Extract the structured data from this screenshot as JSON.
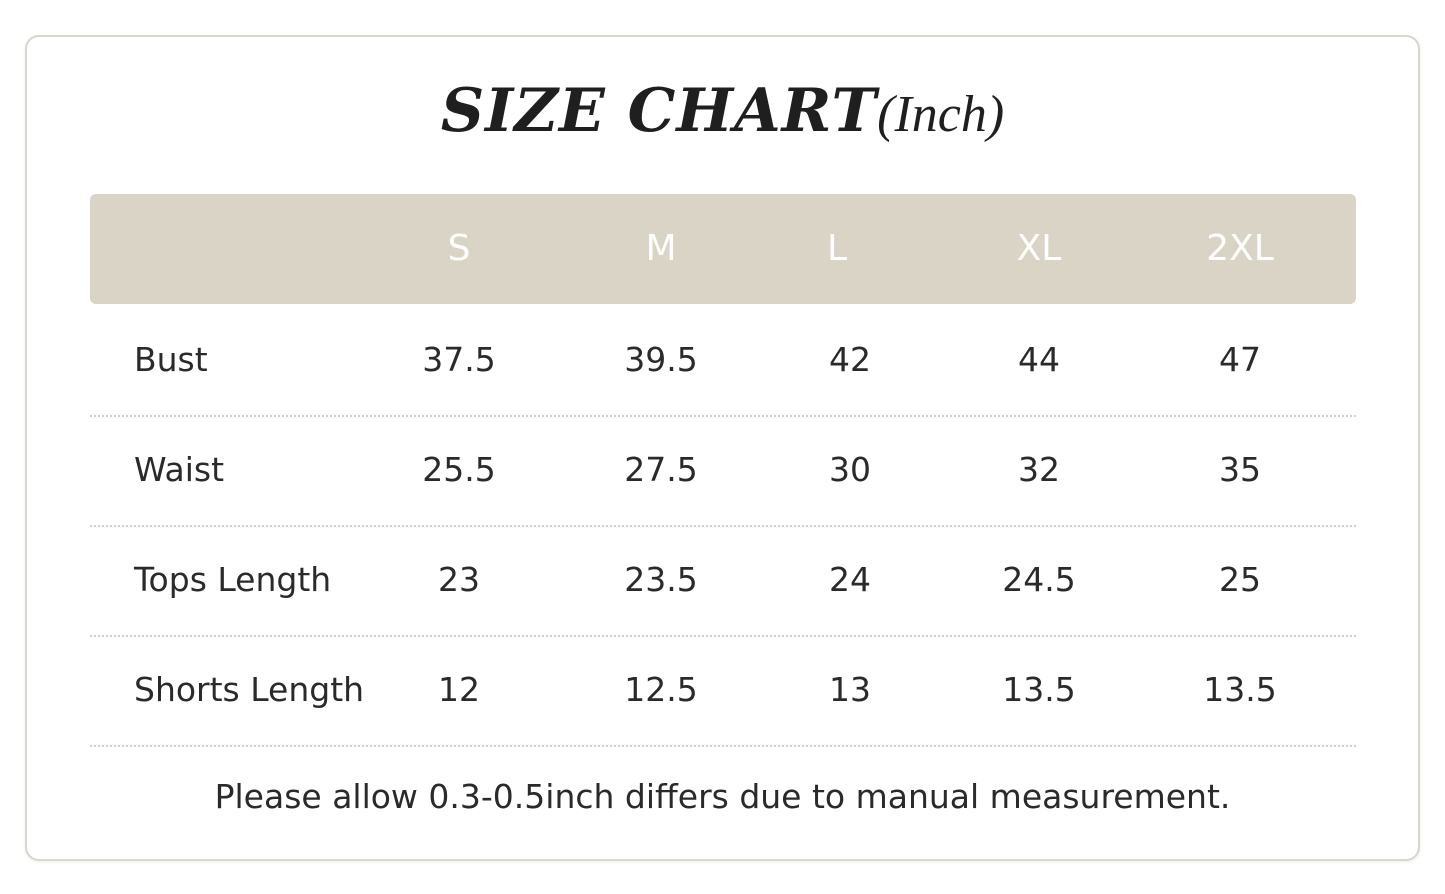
{
  "title": {
    "main": "SIZE CHART",
    "unit": "(Inch)"
  },
  "header": {
    "sizes": [
      "S",
      "M",
      "L",
      "XL",
      "2XL"
    ]
  },
  "rows": [
    {
      "label": "Bust",
      "values": [
        "37.5",
        "39.5",
        "42",
        "44",
        "47"
      ]
    },
    {
      "label": "Waist",
      "values": [
        "25.5",
        "27.5",
        "30",
        "32",
        "35"
      ]
    },
    {
      "label": "Tops Length",
      "values": [
        "23",
        "23.5",
        "24",
        "24.5",
        "25"
      ]
    },
    {
      "label": "Shorts Length",
      "values": [
        "12",
        "12.5",
        "13",
        "13.5",
        "13.5"
      ]
    }
  ],
  "footnote": "Please allow 0.3-0.5inch differs due to manual measurement.",
  "colors": {
    "header_bg": "#d9d4c5",
    "header_text": "#ffffff",
    "text": "#2a2a2a",
    "border": "#d9d6cc"
  }
}
